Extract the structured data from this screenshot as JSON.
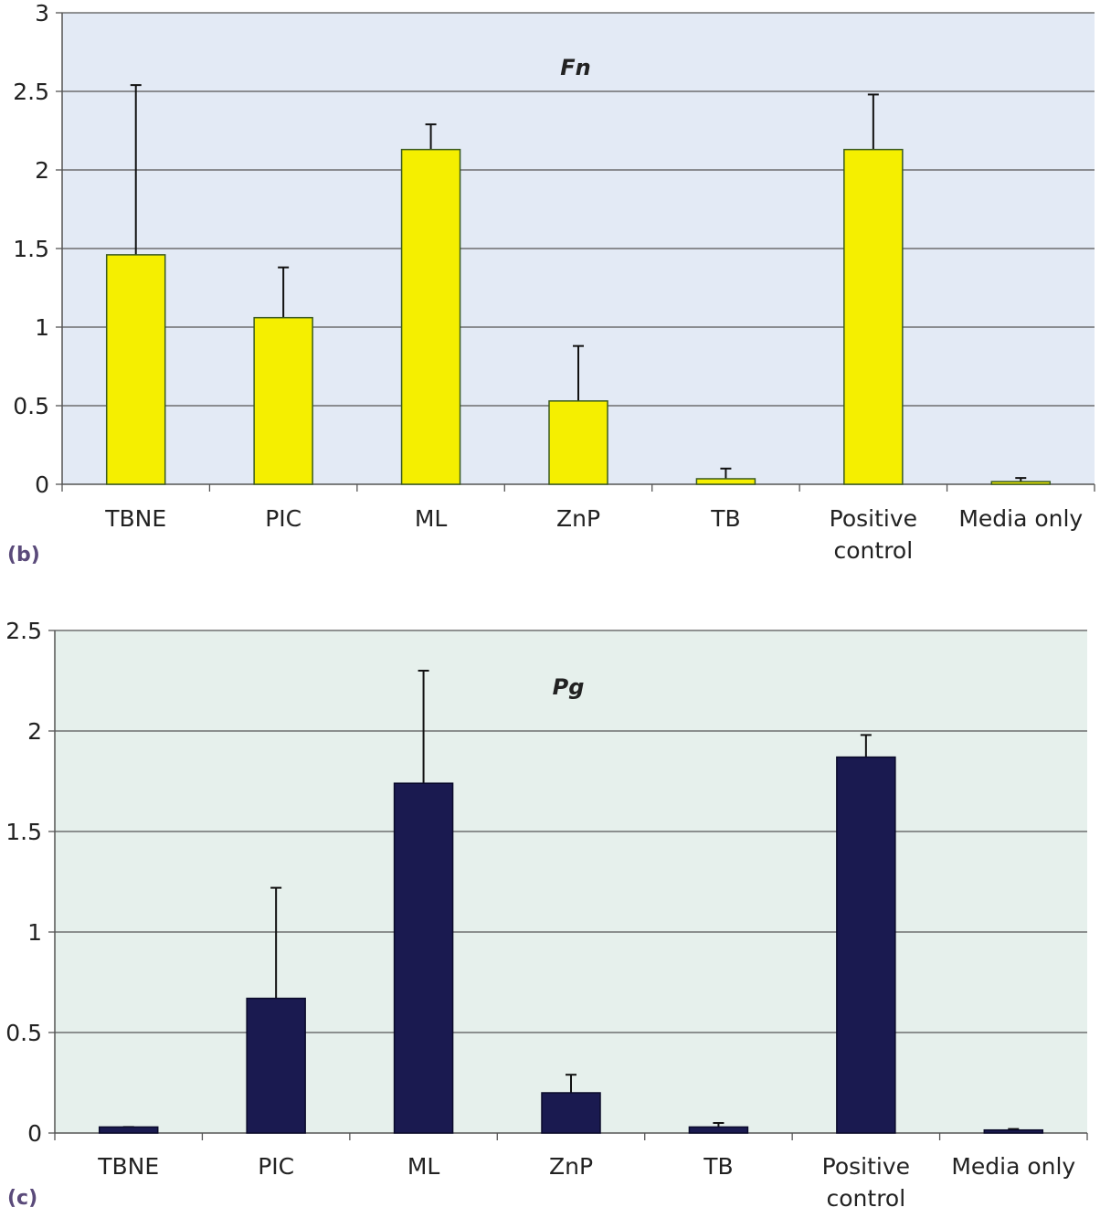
{
  "chart_data": [
    {
      "type": "bar",
      "panel_label": "(b)",
      "title": "Fn",
      "categories": [
        "TBNE",
        "PIC",
        "ML",
        "ZnP",
        "TB",
        "Positive control",
        "Media only"
      ],
      "category_lines": [
        [
          "TBNE"
        ],
        [
          "PIC"
        ],
        [
          "ML"
        ],
        [
          "ZnP"
        ],
        [
          "TB"
        ],
        [
          "Positive",
          "control"
        ],
        [
          "Media only"
        ]
      ],
      "values": [
        1.46,
        1.06,
        2.13,
        0.53,
        0.035,
        2.13,
        0.017
      ],
      "error_upper": [
        2.54,
        1.38,
        2.29,
        0.88,
        0.1,
        2.48,
        0.04
      ],
      "ylim": [
        0,
        3
      ],
      "yticks": [
        "0",
        "0.5",
        "1",
        "1.5",
        "2",
        "2.5",
        "3"
      ],
      "grid": true,
      "bar_color": "#f5ef00",
      "bar_edge": "#3a5a20",
      "plot_bg": "#e3eaf5"
    },
    {
      "type": "bar",
      "panel_label": "(c)",
      "title": "Pg",
      "categories": [
        "TBNE",
        "PIC",
        "ML",
        "ZnP",
        "TB",
        "Positive control",
        "Media only"
      ],
      "category_lines": [
        [
          "TBNE"
        ],
        [
          "PIC"
        ],
        [
          "ML"
        ],
        [
          "ZnP"
        ],
        [
          "TB"
        ],
        [
          "Positive",
          "control"
        ],
        [
          "Media only"
        ]
      ],
      "values": [
        0.03,
        0.67,
        1.74,
        0.2,
        0.03,
        1.87,
        0.015
      ],
      "error_upper": [
        0.03,
        1.22,
        2.3,
        0.29,
        0.05,
        1.98,
        0.02
      ],
      "ylim": [
        0,
        2.5
      ],
      "yticks": [
        "0",
        "0.5",
        "1",
        "1.5",
        "2",
        "2.5"
      ],
      "grid": true,
      "bar_color": "#1a1a50",
      "bar_edge": "#0a0a2a",
      "plot_bg": "#e6f0ec"
    }
  ]
}
